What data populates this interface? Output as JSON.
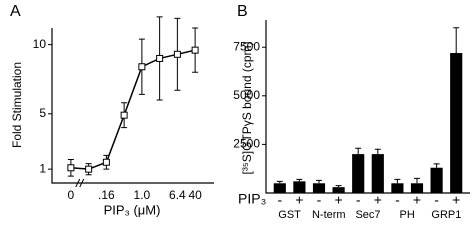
{
  "chart_data": [
    {
      "type": "line",
      "panel": "A",
      "xlabel": "PIP₃ (μM)",
      "ylabel": "Fold Stimulation",
      "categories": [
        "0",
        null,
        ".16",
        null,
        "1.0",
        null,
        "6.4",
        "40"
      ],
      "values": [
        1.1,
        1.0,
        1.5,
        4.9,
        8.4,
        9.0,
        9.3,
        9.6
      ],
      "errors": [
        0.6,
        0.4,
        0.5,
        0.9,
        2.0,
        3.0,
        2.6,
        1.6
      ],
      "color": "#000000",
      "ylim": [
        0,
        11.2
      ],
      "yticks": [
        1,
        5,
        10
      ],
      "axis_break": true
    },
    {
      "type": "bar",
      "panel": "B",
      "ylabel": "[³⁵S]GTPγS bound (cpm)",
      "row_label": "PIP₃",
      "categories": [
        "-",
        "+",
        "-",
        "+",
        "-",
        "+",
        "-",
        "+",
        "-",
        "+"
      ],
      "groups": [
        "GST",
        "N-term",
        "Sec7",
        "PH",
        "GRP1"
      ],
      "values": [
        500,
        600,
        500,
        300,
        2000,
        2000,
        500,
        500,
        1300,
        7200
      ],
      "errors": [
        100,
        100,
        150,
        80,
        300,
        250,
        200,
        250,
        200,
        1300
      ],
      "color": "#000000",
      "ylim": [
        0,
        8900
      ],
      "yticks": [
        2500,
        5000,
        7500
      ]
    }
  ]
}
